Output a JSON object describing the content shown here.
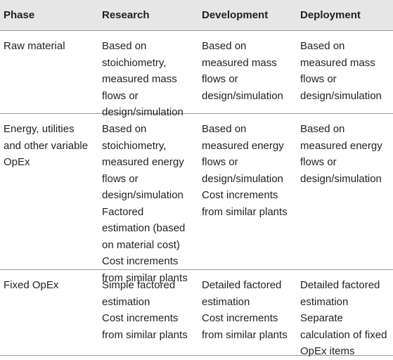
{
  "table": {
    "header": [
      "Phase",
      "Research",
      "Development",
      "Deployment"
    ],
    "rows": [
      [
        [
          "Raw material"
        ],
        [
          "Based on stoichiometry, measured mass flows or design/simulation"
        ],
        [
          "Based on measured mass flows or design/simulation"
        ],
        [
          "Based on measured mass flows or design/simulation"
        ]
      ],
      [
        [
          "Energy, utilities and other variable OpEx"
        ],
        [
          "Based on stoichiometry, measured energy flows or design/simulation",
          "Factored estimation (based on material cost)",
          "Cost increments from similar plants"
        ],
        [
          "Based on measured energy flows or design/simulation",
          "Cost increments from similar plants"
        ],
        [
          "Based on measured energy flows or design/simulation"
        ]
      ],
      [
        [
          "Fixed OpEx"
        ],
        [
          "Simple factored estimation",
          "Cost increments from similar plants"
        ],
        [
          "Detailed factored estimation",
          "Cost increments from similar plants"
        ],
        [
          "Detailed factored estimation",
          "Separate calculation of fixed OpEx items"
        ]
      ]
    ]
  }
}
